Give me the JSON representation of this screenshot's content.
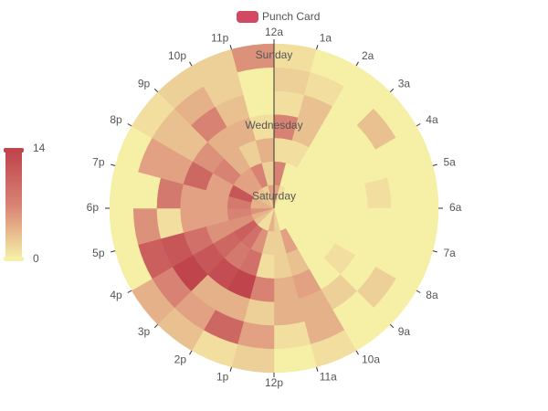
{
  "chart_data": {
    "type": "polar-heatmap",
    "legend": [
      "Punch Card"
    ],
    "legend_color": "#d14a61",
    "angle_categories": [
      "12a",
      "1a",
      "2a",
      "3a",
      "4a",
      "5a",
      "6a",
      "7a",
      "8a",
      "9a",
      "10a",
      "11a",
      "12p",
      "1p",
      "2p",
      "3p",
      "4p",
      "5p",
      "6p",
      "7p",
      "8p",
      "9p",
      "10p",
      "11p"
    ],
    "radius_categories": [
      "Saturday",
      null,
      null,
      "Wednesday",
      null,
      null,
      "Sunday"
    ],
    "values": [
      [
        5,
        1,
        0,
        0,
        0,
        0,
        0,
        0,
        0,
        0,
        0,
        2,
        4,
        1,
        1,
        3,
        4,
        6,
        4,
        4,
        3,
        3,
        2,
        5
      ],
      [
        7,
        0,
        0,
        0,
        0,
        0,
        0,
        0,
        0,
        0,
        5,
        2,
        2,
        6,
        9,
        11,
        6,
        7,
        8,
        12,
        5,
        5,
        7,
        2
      ],
      [
        1,
        1,
        0,
        0,
        0,
        0,
        0,
        0,
        0,
        0,
        3,
        2,
        1,
        9,
        8,
        10,
        6,
        5,
        5,
        5,
        7,
        4,
        2,
        4
      ],
      [
        7,
        3,
        0,
        0,
        0,
        0,
        0,
        0,
        1,
        0,
        5,
        4,
        7,
        14,
        13,
        12,
        9,
        5,
        5,
        10,
        6,
        4,
        4,
        1
      ],
      [
        1,
        3,
        0,
        0,
        0,
        1,
        0,
        0,
        0,
        2,
        4,
        4,
        2,
        4,
        4,
        14,
        12,
        1,
        8,
        5,
        3,
        7,
        3,
        0
      ],
      [
        2,
        1,
        0,
        3,
        0,
        0,
        0,
        0,
        2,
        0,
        4,
        1,
        5,
        10,
        5,
        7,
        11,
        6,
        0,
        5,
        3,
        4,
        2,
        0
      ],
      [
        1,
        0,
        0,
        0,
        0,
        0,
        0,
        0,
        0,
        0,
        1,
        0,
        2,
        1,
        3,
        4,
        0,
        0,
        0,
        0,
        1,
        2,
        2,
        6
      ]
    ],
    "visual_map": {
      "min": 0,
      "max": 14,
      "colors": [
        "#f6efa6",
        "#d88273",
        "#bf444c"
      ]
    }
  }
}
